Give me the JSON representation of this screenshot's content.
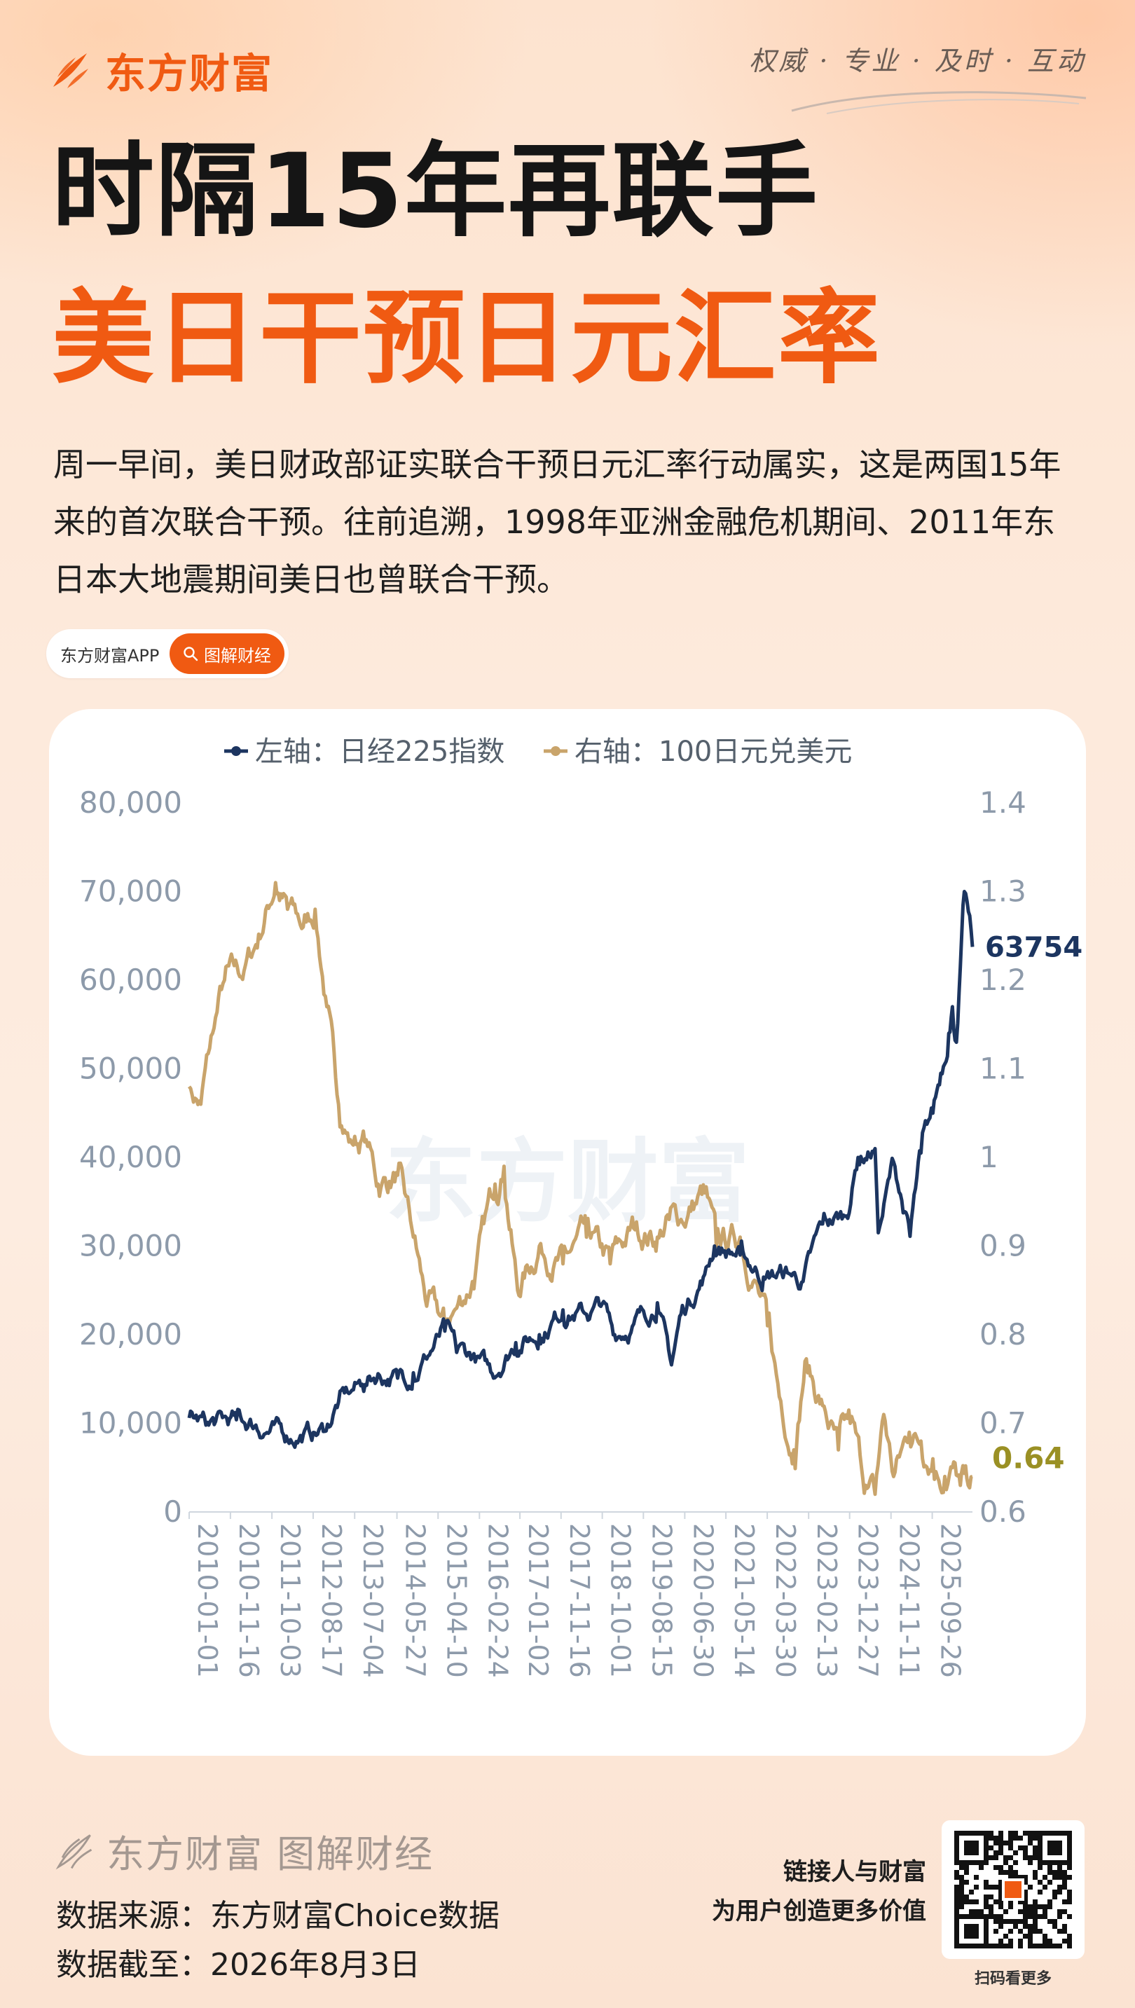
{
  "brand": {
    "name": "东方财富",
    "slogan": "权威 · 专业 · 及时 · 互动"
  },
  "title": {
    "line1": "时隔15年再联手",
    "line2": "美日干预日元汇率"
  },
  "intro": "周一早间，美日财政部证实联合干预日元汇率行动属实，这是两国15年来的首次联合干预。往前追溯，1998年亚洲金融危机期间、2011年东日本大地震期间美日也曾联合干预。",
  "tag": {
    "app": "东方财富APP",
    "button": "图解财经",
    "icon": "search-icon"
  },
  "colors": {
    "accent": "#f05a12",
    "nikkei": "#1c3560",
    "yen": "#c9a46b",
    "yen_label": "#9a9024",
    "axis": "#8d9aaa"
  },
  "chart_data": {
    "type": "line",
    "legend": [
      "左轴：日经225指数",
      "右轴：100日元兑美元"
    ],
    "legend_position": "top",
    "x_tick_labels": [
      "2010-01-01",
      "2010-11-16",
      "2011-10-03",
      "2012-08-17",
      "2013-07-04",
      "2014-05-27",
      "2015-04-10",
      "2016-02-24",
      "2017-01-02",
      "2017-11-16",
      "2018-10-01",
      "2019-08-15",
      "2020-06-30",
      "2021-05-14",
      "2022-03-30",
      "2023-02-13",
      "2023-12-27",
      "2024-11-11",
      "2025-09-26"
    ],
    "y_left": {
      "ticks": [
        "0",
        "10,000",
        "20,000",
        "30,000",
        "40,000",
        "50,000",
        "60,000",
        "70,000",
        "80,000"
      ],
      "range": [
        0,
        80000
      ]
    },
    "y_right": {
      "ticks": [
        "0.6",
        "0.7",
        "0.8",
        "0.9",
        "1",
        "1.1",
        "1.2",
        "1.3",
        "1.4"
      ],
      "range": [
        0.6,
        1.4
      ]
    },
    "grid": false,
    "series": [
      {
        "name": "左轴：日经225指数",
        "axis": "left",
        "x": [
          "2010-01-01",
          "2010-06-01",
          "2011-01-01",
          "2011-06-01",
          "2012-01-01",
          "2012-06-01",
          "2012-11-15",
          "2013-03-01",
          "2013-06-01",
          "2013-09-01",
          "2014-01-01",
          "2014-06-01",
          "2014-10-01",
          "2015-01-01",
          "2015-06-01",
          "2015-09-01",
          "2016-01-01",
          "2016-06-01",
          "2016-12-01",
          "2017-06-01",
          "2017-12-01",
          "2018-06-01",
          "2018-10-01",
          "2018-12-25",
          "2019-06-01",
          "2019-12-01",
          "2020-03-19",
          "2020-06-01",
          "2020-12-01",
          "2021-02-15",
          "2021-09-01",
          "2022-03-01",
          "2022-09-01",
          "2023-01-01",
          "2023-06-01",
          "2023-12-01",
          "2024-03-01",
          "2024-07-11",
          "2024-08-05",
          "2024-12-01",
          "2025-04-07",
          "2025-07-01",
          "2025-10-01",
          "2025-12-01",
          "2026-02-01",
          "2026-03-01",
          "2026-04-01",
          "2026-06-01",
          "2026-08-03"
        ],
        "values": [
          10600,
          9800,
          10400,
          9800,
          8700,
          8700,
          9100,
          12400,
          13500,
          14400,
          15600,
          15100,
          15700,
          17400,
          20400,
          18000,
          17600,
          15600,
          19100,
          20000,
          22800,
          22300,
          23500,
          20000,
          21200,
          23600,
          16600,
          22300,
          26800,
          30000,
          29000,
          26500,
          27000,
          26000,
          32500,
          33400,
          40000,
          41000,
          31500,
          39500,
          31100,
          40500,
          45000,
          49500,
          54000,
          57000,
          53000,
          70000,
          63754
        ]
      },
      {
        "name": "右轴：100日元兑美元",
        "axis": "right",
        "x": [
          "2010-01-01",
          "2010-04-01",
          "2010-07-01",
          "2010-10-01",
          "2011-03-01",
          "2011-06-01",
          "2011-10-31",
          "2012-02-01",
          "2012-06-01",
          "2012-09-01",
          "2012-12-01",
          "2013-03-01",
          "2013-06-01",
          "2013-10-01",
          "2014-01-01",
          "2014-06-01",
          "2014-10-01",
          "2015-01-01",
          "2015-06-01",
          "2015-09-01",
          "2016-01-01",
          "2016-06-24",
          "2016-09-01",
          "2016-12-15",
          "2017-06-01",
          "2017-12-01",
          "2018-06-01",
          "2018-12-01",
          "2019-06-01",
          "2019-12-01",
          "2020-03-01",
          "2020-06-01",
          "2020-12-01",
          "2021-03-01",
          "2021-09-01",
          "2022-01-01",
          "2022-04-01",
          "2022-07-01",
          "2022-10-21",
          "2023-01-16",
          "2023-06-01",
          "2023-10-01",
          "2024-01-01",
          "2024-04-29",
          "2024-07-11",
          "2024-09-16",
          "2024-12-01",
          "2025-04-01",
          "2025-07-01",
          "2025-10-01",
          "2026-01-01",
          "2026-03-01",
          "2026-05-01",
          "2026-07-01",
          "2026-08-03"
        ],
        "values": [
          1.08,
          1.06,
          1.14,
          1.2,
          1.21,
          1.24,
          1.31,
          1.28,
          1.26,
          1.28,
          1.17,
          1.06,
          1.02,
          1.02,
          0.97,
          0.98,
          0.91,
          0.84,
          0.81,
          0.83,
          0.86,
          0.97,
          0.99,
          0.85,
          0.9,
          0.88,
          0.91,
          0.88,
          0.92,
          0.91,
          0.93,
          0.93,
          0.96,
          0.9,
          0.91,
          0.86,
          0.81,
          0.73,
          0.67,
          0.77,
          0.72,
          0.67,
          0.7,
          0.63,
          0.62,
          0.71,
          0.64,
          0.69,
          0.68,
          0.66,
          0.64,
          0.65,
          0.63,
          0.63,
          0.64
        ]
      }
    ],
    "end_labels": {
      "nikkei": "63754",
      "yen": "0.64"
    }
  },
  "watermark": "东方财富",
  "footer": {
    "logo_text": "东方财富 图解财经",
    "source_line": "数据来源：东方财富Choice数据",
    "date_line": "数据截至：2026年8月3日",
    "tagline_1": "链接人与财富",
    "tagline_2": "为用户创造更多价值",
    "qr_caption": "扫码看更多"
  }
}
